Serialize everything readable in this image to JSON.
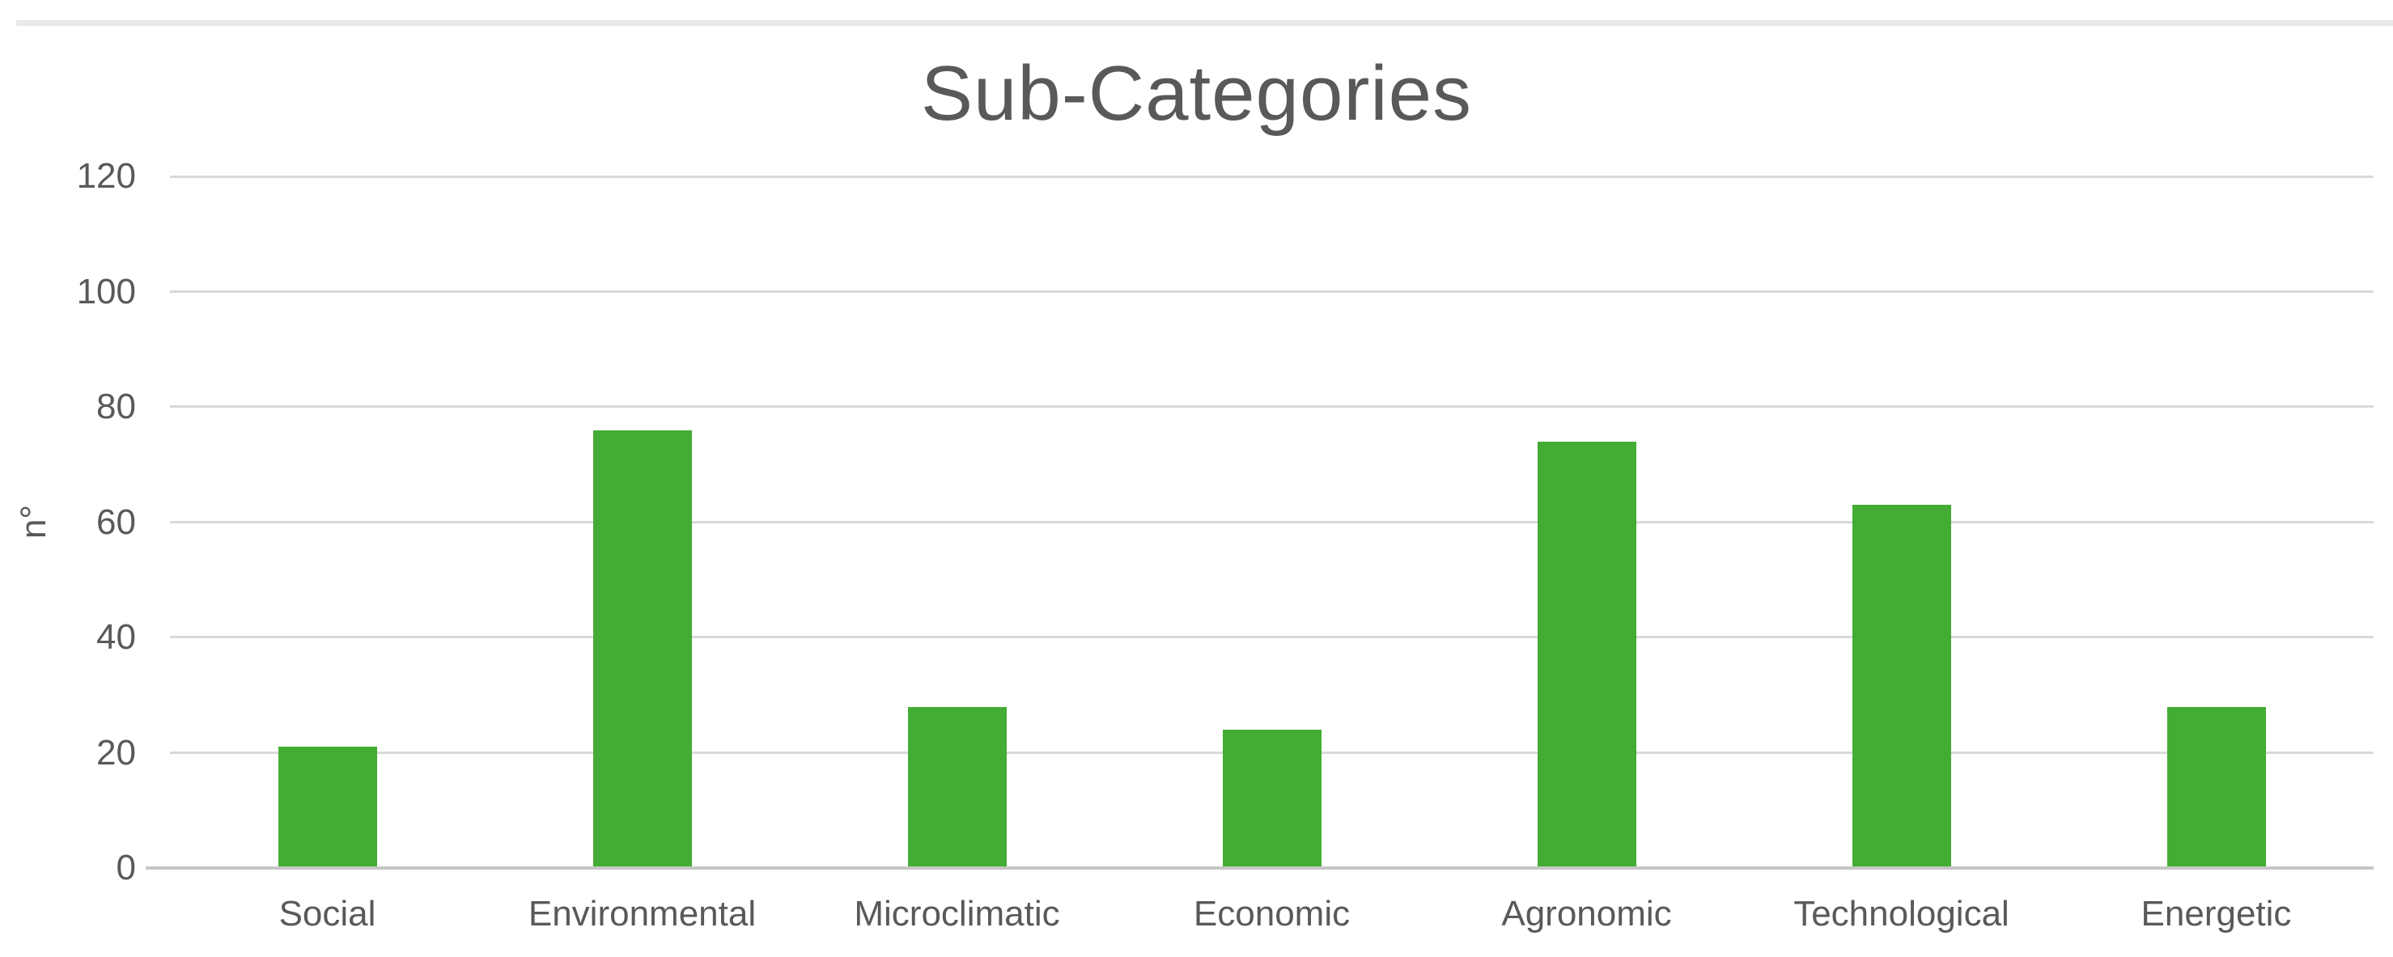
{
  "page": {
    "background": "#ffffff",
    "top_rule_color": "#e9e9e9"
  },
  "chart_data": {
    "type": "bar",
    "title": "Sub-Categories",
    "ylabel": "n°",
    "xlabel": "",
    "categories": [
      "Social",
      "Environmental",
      "Microclimatic",
      "Economic",
      "Agronomic",
      "Technological",
      "Energetic"
    ],
    "values": [
      21,
      76,
      28,
      24,
      74,
      63,
      28
    ],
    "y_ticks": [
      0,
      20,
      40,
      60,
      80,
      100,
      120
    ],
    "ylim": [
      0,
      120
    ],
    "grid": "horizontal-gridlines-on",
    "legend": "none",
    "bar_color": "#43ac34",
    "gridline_color": "#d9d9d9",
    "axis_line_color": "#c6c6c6",
    "text_color": "#595959"
  }
}
